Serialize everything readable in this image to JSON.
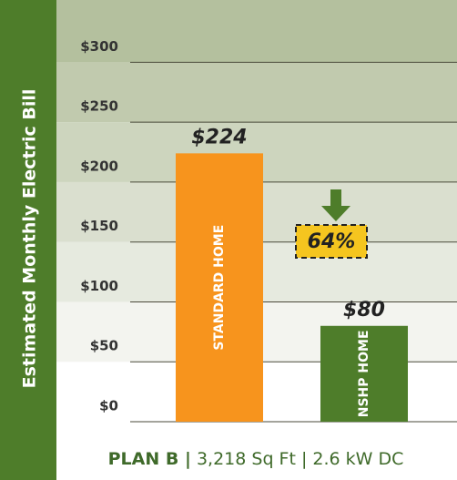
{
  "chart_data": {
    "type": "bar",
    "ylabel": "Estimated Monthly Electric Bill",
    "categories": [
      "STANDARD HOME",
      "NSHP HOME"
    ],
    "values": [
      224,
      80
    ],
    "value_labels": [
      "$224",
      "$80"
    ],
    "colors": [
      "#f7941d",
      "#4e7d2a"
    ],
    "ylim": [
      0,
      352
    ],
    "yticks": [
      {
        "value": 0,
        "label": "$0"
      },
      {
        "value": 50,
        "label": "$50"
      },
      {
        "value": 100,
        "label": "$100"
      },
      {
        "value": 150,
        "label": "$150"
      },
      {
        "value": 200,
        "label": "$200"
      },
      {
        "value": 250,
        "label": "$250"
      },
      {
        "value": 300,
        "label": "$300"
      }
    ],
    "grid": true,
    "annotations": [
      {
        "text": "64%"
      }
    ],
    "footer": {
      "plan": "PLAN B |",
      "details": "3,218 Sq Ft |  2.6 kW DC"
    }
  }
}
